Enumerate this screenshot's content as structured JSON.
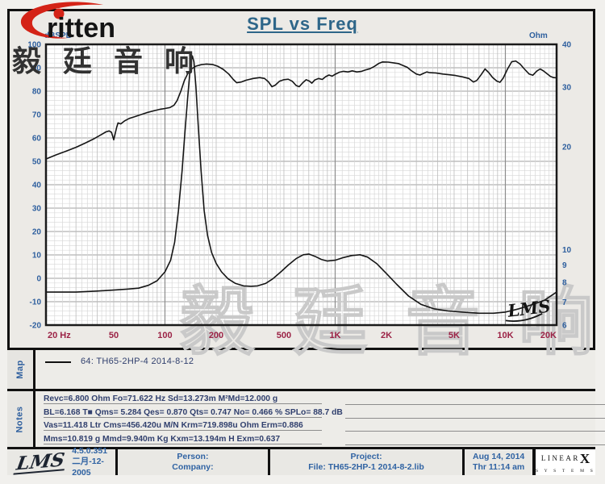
{
  "logo": {
    "brand_text": "ritten"
  },
  "title": "SPL vs Freq",
  "cjk_watermark_dark": "毅廷音响",
  "chart_data": {
    "type": "line",
    "title": "SPL vs Freq",
    "x_axis": {
      "scale": "log",
      "range_hz": [
        20,
        20000
      ],
      "ticks": [
        {
          "f": 20,
          "label": "20  Hz"
        },
        {
          "f": 50,
          "label": "50"
        },
        {
          "f": 100,
          "label": "100"
        },
        {
          "f": 200,
          "label": "200"
        },
        {
          "f": 500,
          "label": "500"
        },
        {
          "f": 1000,
          "label": "1K"
        },
        {
          "f": 2000,
          "label": "2K"
        },
        {
          "f": 5000,
          "label": "5K"
        },
        {
          "f": 10000,
          "label": "10K"
        },
        {
          "f": 20000,
          "label": "20K"
        }
      ]
    },
    "left_axis": {
      "label": "dBSPL",
      "scale": "linear",
      "range": [
        -20,
        100
      ],
      "ticks": [
        100,
        90,
        80,
        70,
        60,
        50,
        40,
        30,
        20,
        10,
        0,
        -10,
        -20
      ]
    },
    "right_axis": {
      "label": "Ohm",
      "scale": "log",
      "range": [
        6,
        40
      ],
      "ticks": [
        40,
        30,
        20,
        10,
        9,
        8,
        7,
        6
      ]
    },
    "watermark_text": "毅廷音响",
    "lms_script": "LMS",
    "series": [
      {
        "name": "SPL",
        "axis": "left",
        "unit": "dB",
        "points": [
          [
            20,
            51
          ],
          [
            23,
            52.8
          ],
          [
            26,
            54.2
          ],
          [
            30,
            56
          ],
          [
            34,
            57.8
          ],
          [
            38,
            59.5
          ],
          [
            42,
            61.3
          ],
          [
            45,
            62.6
          ],
          [
            47,
            63
          ],
          [
            48.5,
            62.4
          ],
          [
            50,
            59.2
          ],
          [
            52,
            64.5
          ],
          [
            53,
            66.4
          ],
          [
            55,
            66
          ],
          [
            58,
            67.3
          ],
          [
            62,
            68.4
          ],
          [
            66,
            69
          ],
          [
            71,
            69.8
          ],
          [
            78,
            70.8
          ],
          [
            85,
            71.5
          ],
          [
            93,
            72.2
          ],
          [
            100,
            72.6
          ],
          [
            107,
            73
          ],
          [
            113,
            74
          ],
          [
            118,
            76
          ],
          [
            124,
            80
          ],
          [
            130,
            84.5
          ],
          [
            136,
            87.5
          ],
          [
            143,
            89.5
          ],
          [
            152,
            90.7
          ],
          [
            163,
            91.3
          ],
          [
            175,
            91.6
          ],
          [
            190,
            91.4
          ],
          [
            205,
            90.6
          ],
          [
            220,
            89.3
          ],
          [
            237,
            87.3
          ],
          [
            252,
            85
          ],
          [
            264,
            83.6
          ],
          [
            280,
            83.9
          ],
          [
            300,
            84.7
          ],
          [
            330,
            85.4
          ],
          [
            360,
            85.8
          ],
          [
            385,
            85.4
          ],
          [
            405,
            84
          ],
          [
            425,
            81.9
          ],
          [
            445,
            82.6
          ],
          [
            470,
            84.2
          ],
          [
            500,
            84.9
          ],
          [
            530,
            85.1
          ],
          [
            560,
            84.2
          ],
          [
            590,
            82.4
          ],
          [
            615,
            81.9
          ],
          [
            645,
            83.6
          ],
          [
            675,
            84.9
          ],
          [
            705,
            84.3
          ],
          [
            730,
            83.4
          ],
          [
            760,
            84.8
          ],
          [
            800,
            85.4
          ],
          [
            840,
            85
          ],
          [
            880,
            86.2
          ],
          [
            920,
            86.9
          ],
          [
            960,
            86.4
          ],
          [
            1000,
            87.2
          ],
          [
            1060,
            88.1
          ],
          [
            1120,
            88.5
          ],
          [
            1190,
            88.2
          ],
          [
            1260,
            88.7
          ],
          [
            1340,
            88.2
          ],
          [
            1420,
            88.4
          ],
          [
            1500,
            89
          ],
          [
            1600,
            89.6
          ],
          [
            1700,
            90.6
          ],
          [
            1800,
            91.8
          ],
          [
            1900,
            92.5
          ],
          [
            2050,
            92.4
          ],
          [
            2200,
            92.1
          ],
          [
            2350,
            91.8
          ],
          [
            2500,
            91
          ],
          [
            2650,
            90.2
          ],
          [
            2800,
            88.8
          ],
          [
            3000,
            87.3
          ],
          [
            3150,
            86.9
          ],
          [
            3300,
            87.6
          ],
          [
            3450,
            88.2
          ],
          [
            3600,
            87.9
          ],
          [
            3900,
            87.8
          ],
          [
            4300,
            87.3
          ],
          [
            4700,
            87
          ],
          [
            5100,
            86.7
          ],
          [
            5600,
            86.1
          ],
          [
            6100,
            85.4
          ],
          [
            6500,
            83.9
          ],
          [
            6800,
            84.6
          ],
          [
            7200,
            87
          ],
          [
            7600,
            89.5
          ],
          [
            8000,
            87.9
          ],
          [
            8400,
            85.9
          ],
          [
            8900,
            84.3
          ],
          [
            9300,
            83.8
          ],
          [
            9700,
            85.5
          ],
          [
            10300,
            89.5
          ],
          [
            10900,
            92.6
          ],
          [
            11500,
            92.9
          ],
          [
            12200,
            91.6
          ],
          [
            13000,
            89.3
          ],
          [
            13800,
            87.3
          ],
          [
            14500,
            86.8
          ],
          [
            15300,
            88.6
          ],
          [
            16000,
            89.5
          ],
          [
            16800,
            88.6
          ],
          [
            17600,
            87.4
          ],
          [
            18400,
            86.3
          ],
          [
            19200,
            85.8
          ],
          [
            20000,
            85.7
          ]
        ]
      },
      {
        "name": "Impedance",
        "axis": "right",
        "unit": "Ohm",
        "points": [
          [
            20,
            7.5
          ],
          [
            30,
            7.5
          ],
          [
            40,
            7.55
          ],
          [
            50,
            7.6
          ],
          [
            60,
            7.65
          ],
          [
            70,
            7.7
          ],
          [
            80,
            7.85
          ],
          [
            90,
            8.1
          ],
          [
            100,
            8.6
          ],
          [
            108,
            9.3
          ],
          [
            114,
            10.5
          ],
          [
            120,
            13
          ],
          [
            126,
            17
          ],
          [
            131,
            22
          ],
          [
            136,
            28
          ],
          [
            140,
            33
          ],
          [
            143,
            36
          ],
          [
            145,
            37
          ],
          [
            148,
            35.5
          ],
          [
            152,
            30
          ],
          [
            157,
            23
          ],
          [
            163,
            17
          ],
          [
            170,
            13
          ],
          [
            178,
            11
          ],
          [
            188,
            9.8
          ],
          [
            200,
            9.1
          ],
          [
            215,
            8.6
          ],
          [
            235,
            8.2
          ],
          [
            260,
            7.95
          ],
          [
            290,
            7.82
          ],
          [
            320,
            7.8
          ],
          [
            350,
            7.82
          ],
          [
            390,
            7.95
          ],
          [
            430,
            8.2
          ],
          [
            480,
            8.6
          ],
          [
            530,
            9
          ],
          [
            590,
            9.4
          ],
          [
            650,
            9.65
          ],
          [
            700,
            9.7
          ],
          [
            760,
            9.55
          ],
          [
            830,
            9.35
          ],
          [
            900,
            9.25
          ],
          [
            1000,
            9.3
          ],
          [
            1100,
            9.45
          ],
          [
            1250,
            9.6
          ],
          [
            1400,
            9.65
          ],
          [
            1550,
            9.5
          ],
          [
            1750,
            9.1
          ],
          [
            2000,
            8.5
          ],
          [
            2300,
            7.9
          ],
          [
            2700,
            7.3
          ],
          [
            3200,
            6.9
          ],
          [
            3800,
            6.7
          ],
          [
            4600,
            6.6
          ],
          [
            5600,
            6.55
          ],
          [
            7000,
            6.5
          ],
          [
            8500,
            6.5
          ],
          [
            10000,
            6.55
          ],
          [
            12000,
            6.7
          ],
          [
            14500,
            6.9
          ],
          [
            17000,
            7.1
          ],
          [
            20000,
            7.5
          ]
        ]
      }
    ]
  },
  "map": {
    "label": "Map",
    "legend": "64: TH65-2HP-4    2014-8-12"
  },
  "notes": {
    "label": "Notes",
    "lines": [
      "Revc=6.800 Ohm  Fo=71.622 Hz  Sd=13.273m M²Md=12.000 g",
      "BL=6.168 T■  Qms= 5.284  Qes= 0.870  Qts= 0.747  No= 0.466 %  SPLo= 88.7 dB",
      "Vas=11.418 Ltr  Cms=456.420u M/N  Krm=719.898u Ohm  Erm=0.886",
      "Mms=10.819 g  Mmd=9.940m Kg  Kxm=13.194m H  Exm=0.637"
    ]
  },
  "footer": {
    "lms_logo": "LMS",
    "version": "4.5.0.351",
    "version_date": "二月-12-2005",
    "person_label": "Person:",
    "company_label": "Company:",
    "project_label": "Project:",
    "file_label": "File: TH65-2HP-1   2014-8-2.lib",
    "date": "Aug 14, 2014",
    "time": "Thr 11:14 am",
    "linearx_word": "LINEAR",
    "linearx_x": "X",
    "linearx_systems": "S Y S T E M S"
  },
  "colors": {
    "title_blue": "#2e6689",
    "axis_blue": "#2e5f9e",
    "freq_maroon": "#9b2245",
    "note_navy": "#31406e",
    "curve_black": "#151515",
    "logo_red": "#d42317",
    "watermark_gray": "#c9c9c9"
  }
}
